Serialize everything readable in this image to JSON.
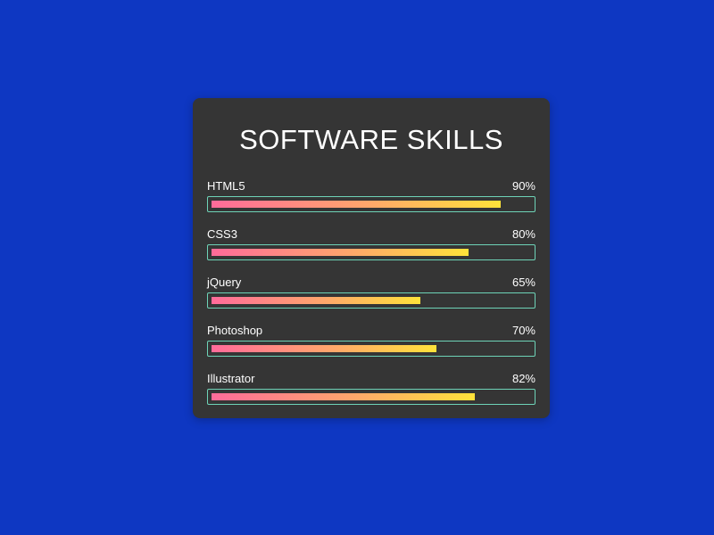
{
  "card": {
    "title": "SOFTWARE SKILLS"
  },
  "skills": [
    {
      "name": "HTML5",
      "percent_label": "90%",
      "percent": 90
    },
    {
      "name": "CSS3",
      "percent_label": "80%",
      "percent": 80
    },
    {
      "name": "jQuery",
      "percent_label": "65%",
      "percent": 65
    },
    {
      "name": "Photoshop",
      "percent_label": "70%",
      "percent": 70
    },
    {
      "name": "Illustrator",
      "percent_label": "82%",
      "percent": 82
    }
  ],
  "colors": {
    "background": "#0e37c2",
    "card": "#353535",
    "bar_border": "#6ed3b7",
    "gradient_start": "#ff6b9a",
    "gradient_end": "#ffe23a"
  }
}
